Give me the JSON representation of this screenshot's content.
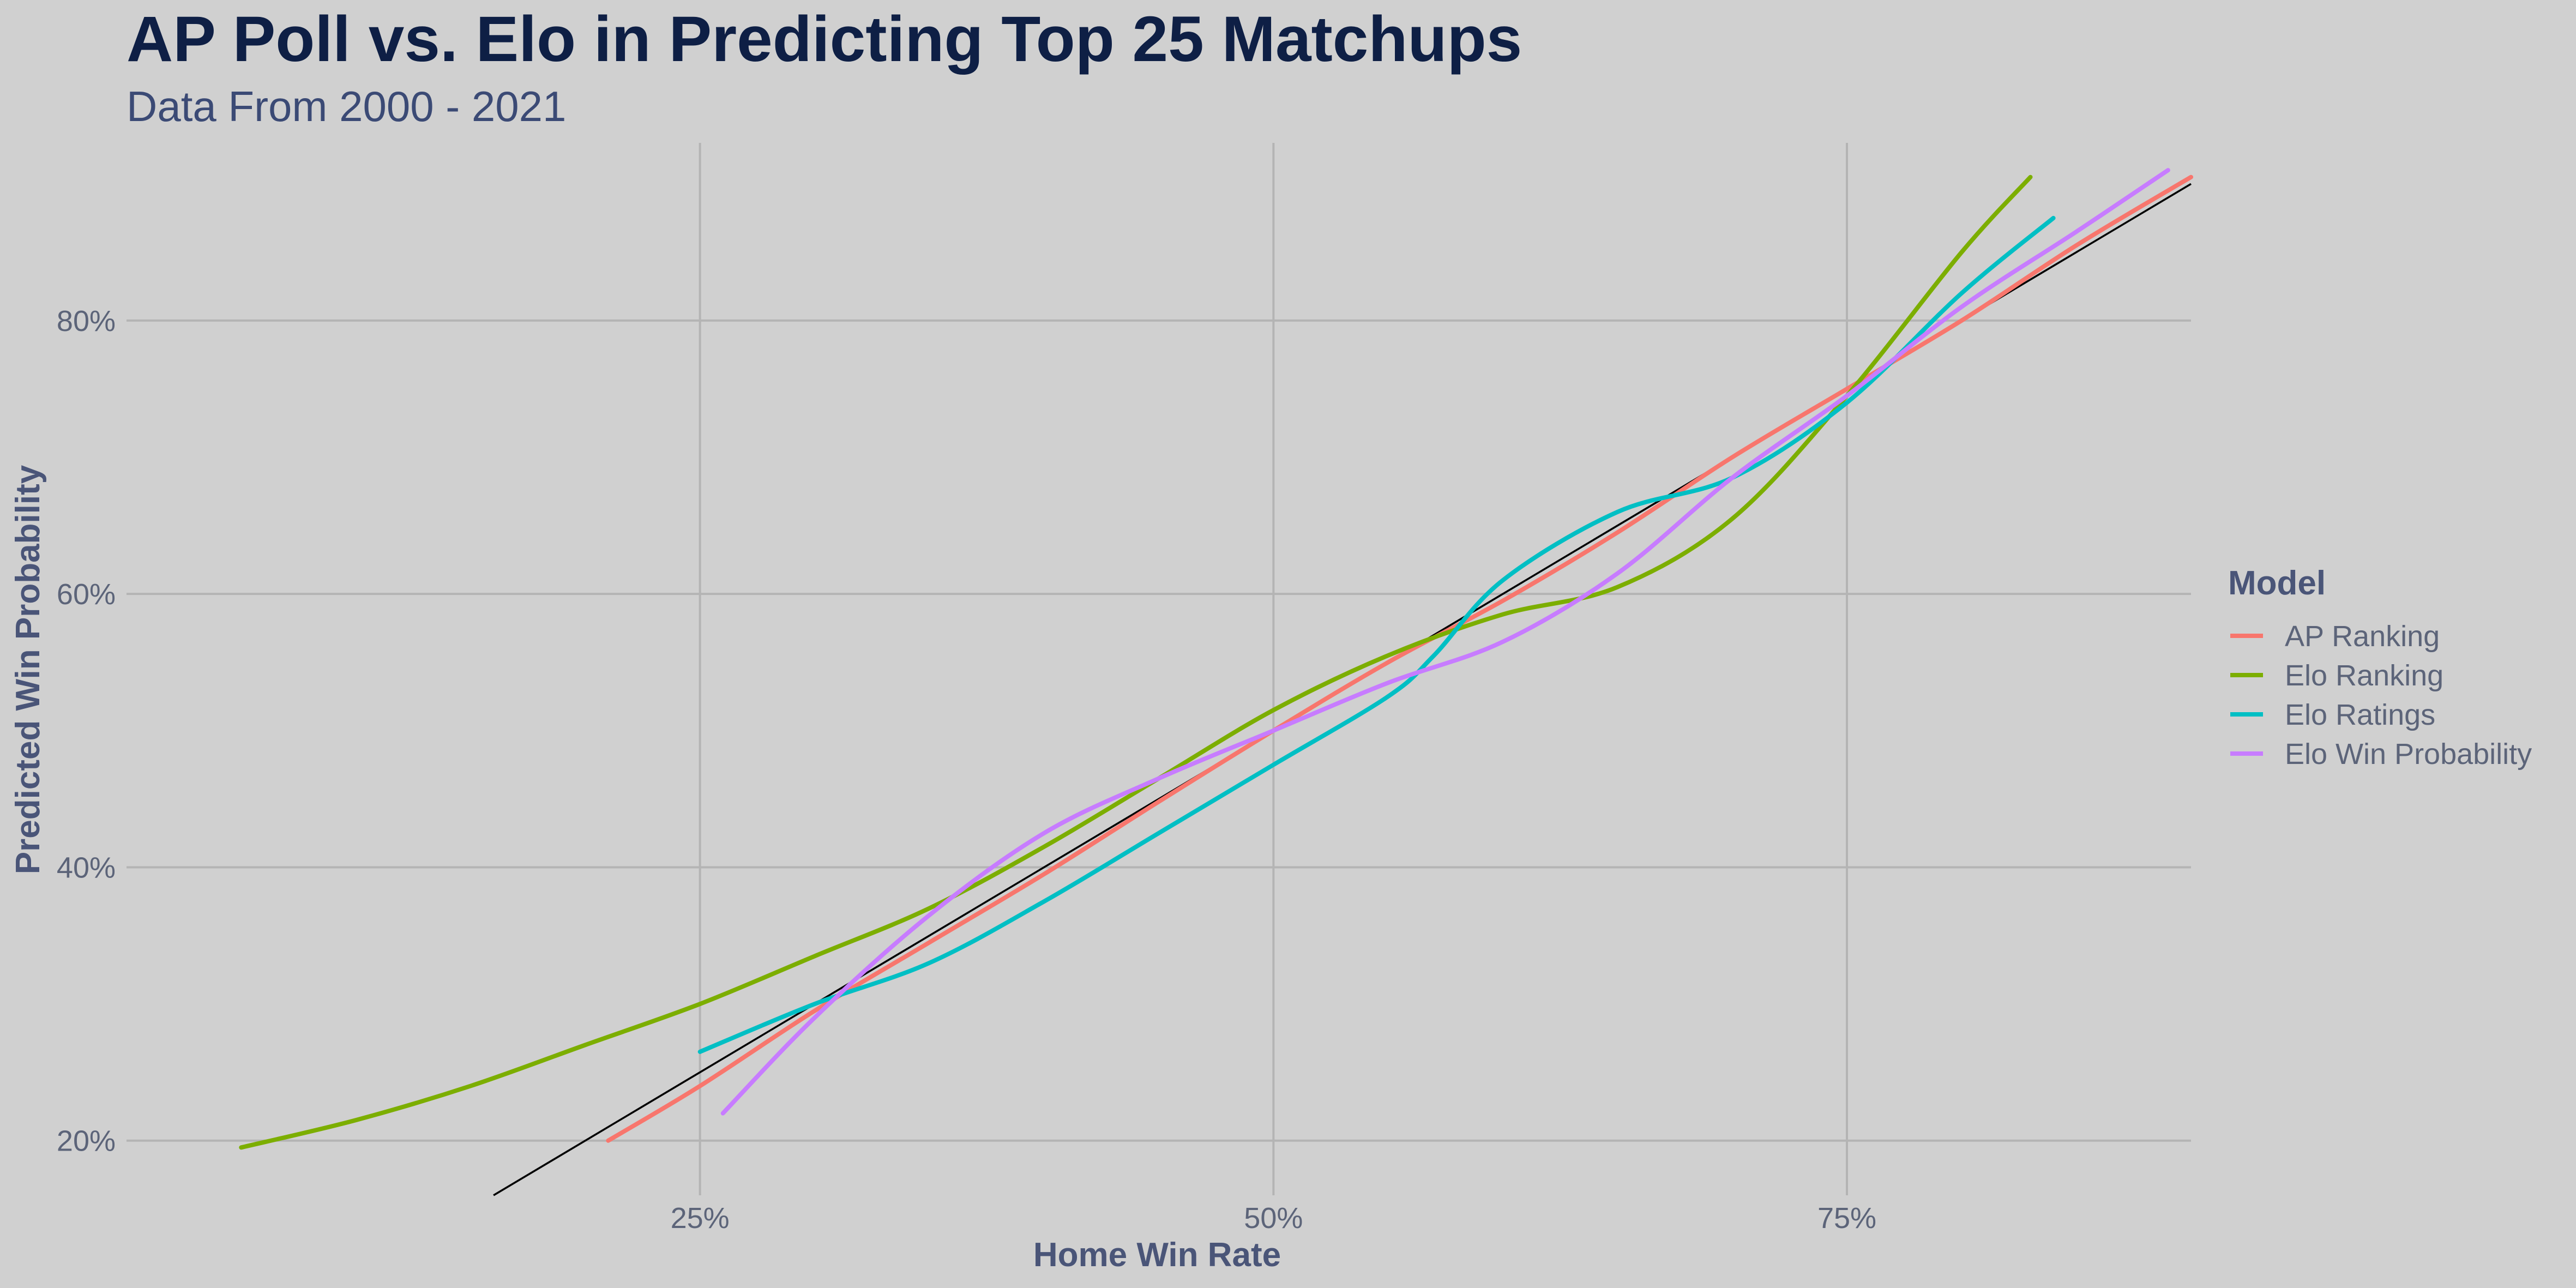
{
  "chart_data": {
    "type": "line",
    "title": "AP Poll vs. Elo in Predicting Top 25 Matchups",
    "subtitle": "Data From 2000 - 2021",
    "xlabel": "Home Win Rate",
    "ylabel": "Predicted Win Probability",
    "xlim": [
      0.0,
      0.9
    ],
    "ylim": [
      0.16,
      0.93
    ],
    "x_ticks": [
      0.25,
      0.5,
      0.75
    ],
    "x_tick_labels": [
      "25%",
      "50%",
      "75%"
    ],
    "y_ticks": [
      0.2,
      0.4,
      0.6,
      0.8
    ],
    "y_tick_labels": [
      "20%",
      "40%",
      "60%",
      "80%"
    ],
    "grid": true,
    "legend": {
      "title": "Model",
      "position": "right"
    },
    "reference_line": {
      "x": [
        0.0,
        0.9
      ],
      "y": [
        0.0,
        0.9
      ],
      "color": "#000000"
    },
    "series": [
      {
        "name": "AP Ranking",
        "color": "#f8766d",
        "x": [
          0.21,
          0.25,
          0.3,
          0.35,
          0.4,
          0.45,
          0.5,
          0.55,
          0.6,
          0.65,
          0.7,
          0.75,
          0.8,
          0.85,
          0.9
        ],
        "y": [
          0.2,
          0.24,
          0.295,
          0.345,
          0.395,
          0.448,
          0.5,
          0.55,
          0.595,
          0.645,
          0.7,
          0.75,
          0.8,
          0.855,
          0.905
        ]
      },
      {
        "name": "Elo Ranking",
        "color": "#7cae00",
        "x": [
          0.05,
          0.1,
          0.15,
          0.2,
          0.25,
          0.3,
          0.35,
          0.4,
          0.45,
          0.5,
          0.55,
          0.6,
          0.65,
          0.7,
          0.75,
          0.8,
          0.83
        ],
        "y": [
          0.195,
          0.215,
          0.24,
          0.27,
          0.3,
          0.335,
          0.37,
          0.415,
          0.465,
          0.515,
          0.555,
          0.585,
          0.605,
          0.655,
          0.745,
          0.85,
          0.905
        ]
      },
      {
        "name": "Elo Ratings",
        "color": "#00bfc4",
        "x": [
          0.25,
          0.3,
          0.35,
          0.4,
          0.45,
          0.5,
          0.55,
          0.57,
          0.6,
          0.65,
          0.7,
          0.75,
          0.8,
          0.84
        ],
        "y": [
          0.265,
          0.3,
          0.33,
          0.375,
          0.425,
          0.475,
          0.525,
          0.555,
          0.61,
          0.66,
          0.685,
          0.74,
          0.82,
          0.875
        ]
      },
      {
        "name": "Elo Win Probability",
        "color": "#c77cff",
        "x": [
          0.26,
          0.3,
          0.35,
          0.4,
          0.45,
          0.5,
          0.55,
          0.6,
          0.65,
          0.7,
          0.75,
          0.8,
          0.85,
          0.89
        ],
        "y": [
          0.22,
          0.29,
          0.365,
          0.425,
          0.465,
          0.5,
          0.535,
          0.565,
          0.615,
          0.685,
          0.745,
          0.81,
          0.865,
          0.91
        ]
      }
    ]
  }
}
